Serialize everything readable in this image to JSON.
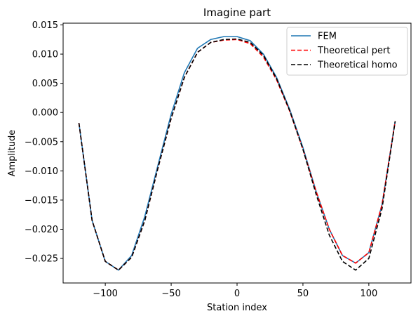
{
  "chart_data": {
    "type": "line",
    "title": "Imagine part",
    "xlabel": "Station index",
    "ylabel": "Amplitude",
    "xlim": [
      -132,
      132
    ],
    "ylim": [
      -0.0292,
      0.0153
    ],
    "xticks": [
      -100,
      -50,
      0,
      50,
      100
    ],
    "xtick_labels": [
      "−100",
      "−50",
      "0",
      "50",
      "100"
    ],
    "yticks": [
      0.015,
      0.01,
      0.005,
      0.0,
      -0.005,
      -0.01,
      -0.015,
      -0.02,
      -0.025
    ],
    "ytick_labels": [
      "0.015",
      "0.010",
      "0.005",
      "0.000",
      "−0.005",
      "−0.010",
      "−0.015",
      "−0.020",
      "−0.025"
    ],
    "grid": false,
    "legend_position": "top-right",
    "x": [
      -120,
      -110,
      -100,
      -90,
      -80,
      -70,
      -60,
      -50,
      -40,
      -30,
      -20,
      -10,
      0,
      10,
      20,
      30,
      40,
      50,
      60,
      70,
      80,
      90,
      100,
      110,
      120
    ],
    "series": [
      {
        "name": "FEM",
        "color": "#1f77b4",
        "style": "solid",
        "values": [
          -0.0018,
          -0.0185,
          -0.0255,
          -0.027,
          -0.0245,
          -0.0178,
          -0.009,
          -0.0003,
          0.0068,
          0.011,
          0.0125,
          0.013,
          0.013,
          0.0123,
          0.01,
          0.006,
          0.0005,
          -0.006,
          -0.0135,
          -0.02,
          -0.0245,
          -0.0258,
          -0.024,
          -0.0158,
          -0.0015
        ]
      },
      {
        "name": "Theoretical pert",
        "color": "#ff0000",
        "style": "dashed",
        "values": [
          -0.0018,
          -0.0185,
          -0.0255,
          -0.027,
          -0.0248,
          -0.0185,
          -0.0095,
          -0.001,
          0.006,
          0.0103,
          0.012,
          0.0124,
          0.0125,
          0.0118,
          0.0095,
          0.0056,
          0.0002,
          -0.0063,
          -0.0135,
          -0.02,
          -0.0245,
          -0.0258,
          -0.024,
          -0.0158,
          -0.0015
        ]
      },
      {
        "name": "Theoretical homo",
        "color": "#000000",
        "style": "dashed",
        "values": [
          -0.0018,
          -0.0185,
          -0.0255,
          -0.027,
          -0.0248,
          -0.0185,
          -0.0095,
          -0.001,
          0.006,
          0.0103,
          0.012,
          0.0125,
          0.0126,
          0.012,
          0.0098,
          0.0058,
          0.0003,
          -0.0063,
          -0.014,
          -0.021,
          -0.0255,
          -0.027,
          -0.025,
          -0.0165,
          -0.0015
        ]
      }
    ]
  }
}
